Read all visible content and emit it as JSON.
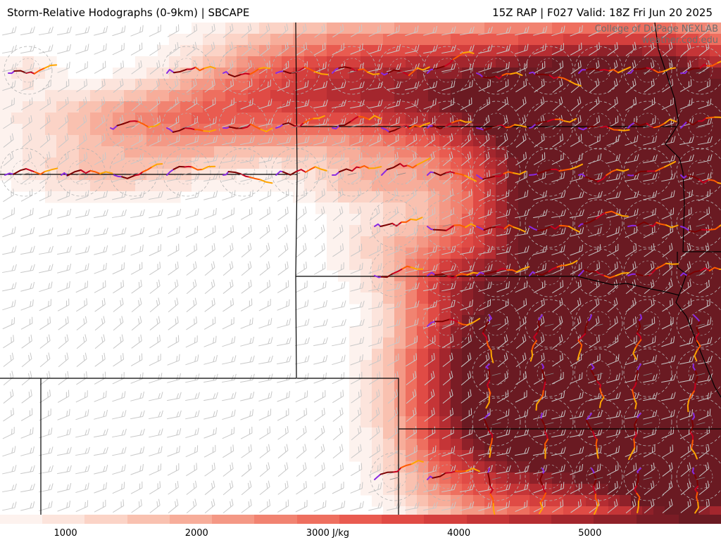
{
  "header": {
    "title_left": "Storm-Relative Hodographs (0-9km) | SBCAPE",
    "title_right": "15Z RAP | F027 Valid: 18Z Fri Jun 20 2025"
  },
  "credit": {
    "line1": "College of DuPage NEXLAB",
    "line2": "weather.cod.edu"
  },
  "colorbar": {
    "ticks": [
      {
        "label": "1000",
        "value": 1000
      },
      {
        "label": "2000",
        "value": 2000
      },
      {
        "label": "3000 J/kg",
        "value": 3000
      },
      {
        "label": "4000",
        "value": 4000
      },
      {
        "label": "5000",
        "value": 5000
      }
    ],
    "min": 500,
    "max": 6000,
    "colors": [
      "#fdf2ee",
      "#fce4dc",
      "#fbd3c6",
      "#f9c1b0",
      "#f7ad9a",
      "#f49885",
      "#f18371",
      "#ee6f5f",
      "#e95b50",
      "#e04b45",
      "#d43f3d",
      "#c53537",
      "#b52d32",
      "#a3262d",
      "#8f2129",
      "#7a1c25",
      "#6a1a22"
    ]
  },
  "map_style": {
    "background": "#ffffff",
    "border_color": "#000000",
    "barb_color": "#c8c8c8",
    "ring_color": "#b4b4b4",
    "hodo_colors": [
      "#7b0000",
      "#c8001e",
      "#ff5a00",
      "#ffa500",
      "#8a2be2"
    ]
  }
}
